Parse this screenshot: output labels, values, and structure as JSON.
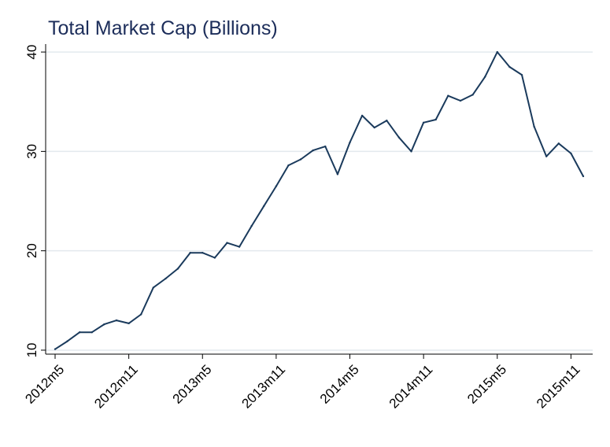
{
  "chart_data": {
    "type": "line",
    "title": "Total Market Cap (Billions)",
    "xlabel": "",
    "ylabel": "",
    "ylim": [
      9.6,
      40.8
    ],
    "grid": true,
    "legend": "none",
    "line_color": "#1a3a5c",
    "grid_color": "#e3e9ee",
    "y_ticks": [
      10,
      20,
      30,
      40
    ],
    "y_tick_labels": [
      "10",
      "20",
      "30",
      "40"
    ],
    "x_ticks": [
      0,
      6,
      12,
      18,
      24,
      30,
      36,
      42
    ],
    "x_tick_labels": [
      "2012m5",
      "2012m11",
      "2013m5",
      "2013m11",
      "2014m5",
      "2014m11",
      "2015m5",
      "2015m11"
    ],
    "x": [
      0,
      1,
      2,
      3,
      4,
      5,
      6,
      7,
      8,
      9,
      10,
      11,
      12,
      13,
      14,
      15,
      16,
      17,
      18,
      19,
      20,
      21,
      22,
      23,
      24,
      25,
      26,
      27,
      28,
      29,
      30,
      31,
      32,
      33,
      34,
      35,
      36,
      37,
      38,
      39,
      40,
      41,
      42,
      43
    ],
    "values": [
      10.1,
      10.9,
      11.8,
      11.8,
      12.6,
      13.0,
      12.7,
      13.6,
      16.3,
      17.2,
      18.2,
      19.8,
      19.8,
      19.3,
      20.8,
      20.4,
      22.5,
      24.5,
      26.5,
      28.6,
      29.2,
      30.1,
      30.5,
      27.7,
      30.9,
      33.6,
      32.4,
      33.1,
      31.4,
      30.0,
      32.9,
      33.2,
      35.6,
      35.1,
      35.7,
      37.5,
      40.0,
      38.5,
      37.7,
      32.5,
      29.5,
      30.8,
      29.8,
      27.5
    ]
  }
}
